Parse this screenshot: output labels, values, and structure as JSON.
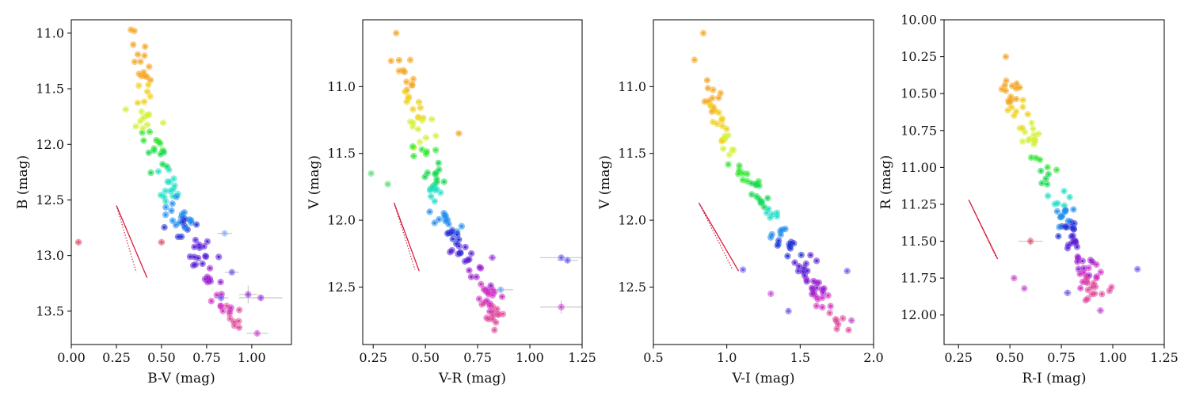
{
  "chart_data": [
    {
      "type": "scatter",
      "panel": "B vs B-V",
      "title": "",
      "xlabel": "B-V (mag)",
      "ylabel": "B (mag)",
      "xlim": [
        0.0,
        1.22
      ],
      "ylim": [
        13.8,
        10.88
      ],
      "y_inverted": true,
      "xticks": [
        0.0,
        0.25,
        0.5,
        0.75,
        1.0
      ],
      "xtick_labels": [
        "0.00",
        "0.25",
        "0.50",
        "0.75",
        "1.00"
      ],
      "yticks": [
        11.0,
        11.5,
        12.0,
        12.5,
        13.0,
        13.5
      ],
      "ytick_labels": [
        "11.0",
        "11.5",
        "12.0",
        "12.5",
        "13.0",
        "13.5"
      ],
      "reddening_vector": {
        "solid": [
          [
            0.25,
            12.55
          ],
          [
            0.42,
            13.2
          ]
        ],
        "dotted": [
          [
            0.25,
            12.55
          ],
          [
            0.36,
            13.15
          ]
        ],
        "color": "#d81b3c"
      },
      "outliers": [
        {
          "x": 0.04,
          "y": 12.88,
          "xerr": 0.02,
          "yerr": 0.02,
          "color": "#e0506e"
        },
        {
          "x": 0.5,
          "y": 12.88,
          "xerr": 0.02,
          "yerr": 0.02,
          "color": "#e0506e"
        },
        {
          "x": 0.33,
          "y": 10.97,
          "xerr": 0.01,
          "yerr": 0.01,
          "color": "#f5a623"
        },
        {
          "x": 0.35,
          "y": 10.98,
          "xerr": 0.01,
          "yerr": 0.01,
          "color": "#f5a623"
        },
        {
          "x": 0.89,
          "y": 13.15,
          "xerr": 0.04,
          "yerr": 0.02,
          "color": "#6b5bf0"
        },
        {
          "x": 0.85,
          "y": 12.8,
          "xerr": 0.04,
          "yerr": 0.02,
          "color": "#8ab4f0"
        },
        {
          "x": 0.98,
          "y": 13.35,
          "xerr": 0.05,
          "yerr": 0.08,
          "color": "#9d3be0"
        },
        {
          "x": 1.03,
          "y": 13.7,
          "xerr": 0.06,
          "yerr": 0.03,
          "color": "#cc4bd6"
        },
        {
          "x": 0.83,
          "y": 13.38,
          "xerr": 0.04,
          "yerr": 0.03,
          "color": "#6b5bf0"
        },
        {
          "x": 1.05,
          "y": 13.38,
          "xerr": 0.12,
          "yerr": 0.03,
          "color": "#9d3be0"
        }
      ],
      "sequence": {
        "points": [
          [
            0.36,
            11.17
          ],
          [
            0.4,
            11.35
          ],
          [
            0.42,
            11.5
          ],
          [
            0.4,
            11.65
          ],
          [
            0.43,
            11.72
          ],
          [
            0.45,
            11.95
          ],
          [
            0.48,
            12.05
          ],
          [
            0.5,
            12.15
          ],
          [
            0.52,
            12.3
          ],
          [
            0.55,
            12.45
          ],
          [
            0.58,
            12.6
          ],
          [
            0.62,
            12.7
          ],
          [
            0.66,
            12.85
          ],
          [
            0.7,
            12.95
          ],
          [
            0.74,
            13.08
          ],
          [
            0.78,
            13.2
          ],
          [
            0.82,
            13.32
          ],
          [
            0.86,
            13.45
          ],
          [
            0.9,
            13.55
          ],
          [
            0.96,
            13.68
          ]
        ],
        "count": 120,
        "spread_x": 0.06,
        "spread_y": 0.06
      }
    },
    {
      "type": "scatter",
      "panel": "V vs V-R",
      "title": "",
      "xlabel": "V-R (mag)",
      "ylabel": "V (mag)",
      "xlim": [
        0.2,
        1.25
      ],
      "ylim": [
        12.93,
        10.5
      ],
      "y_inverted": true,
      "xticks": [
        0.25,
        0.5,
        0.75,
        1.0,
        1.25
      ],
      "xtick_labels": [
        "0.25",
        "0.50",
        "0.75",
        "1.00",
        "1.25"
      ],
      "yticks": [
        11.0,
        11.5,
        12.0,
        12.5
      ],
      "ytick_labels": [
        "11.0",
        "11.5",
        "12.0",
        "12.5"
      ],
      "reddening_vector": {
        "solid": [
          [
            0.35,
            11.87
          ],
          [
            0.47,
            12.38
          ]
        ],
        "dotted": [
          [
            0.35,
            11.87
          ],
          [
            0.45,
            12.37
          ]
        ],
        "color": "#d81b3c"
      },
      "outliers": [
        {
          "x": 0.36,
          "y": 10.6,
          "xerr": 0.01,
          "yerr": 0.01,
          "color": "#f5a623"
        },
        {
          "x": 0.24,
          "y": 11.65,
          "xerr": 0.01,
          "yerr": 0.01,
          "color": "#5fe07a"
        },
        {
          "x": 0.32,
          "y": 11.73,
          "xerr": 0.01,
          "yerr": 0.01,
          "color": "#5fe07a"
        },
        {
          "x": 1.15,
          "y": 12.28,
          "xerr": 0.1,
          "yerr": 0.02,
          "color": "#6b5bf0"
        },
        {
          "x": 1.18,
          "y": 12.3,
          "xerr": 0.05,
          "yerr": 0.02,
          "color": "#6b5bf0"
        },
        {
          "x": 1.15,
          "y": 12.65,
          "xerr": 0.1,
          "yerr": 0.05,
          "color": "#cc4bd6"
        },
        {
          "x": 0.66,
          "y": 11.35,
          "xerr": 0.01,
          "yerr": 0.01,
          "color": "#f5a623"
        },
        {
          "x": 0.82,
          "y": 12.28,
          "xerr": 0.02,
          "yerr": 0.02,
          "color": "#9d3be0"
        },
        {
          "x": 0.86,
          "y": 12.52,
          "xerr": 0.06,
          "yerr": 0.02,
          "color": "#6fa8f0"
        }
      ],
      "sequence": {
        "points": [
          [
            0.38,
            10.8
          ],
          [
            0.4,
            10.95
          ],
          [
            0.43,
            11.1
          ],
          [
            0.46,
            11.25
          ],
          [
            0.48,
            11.4
          ],
          [
            0.5,
            11.5
          ],
          [
            0.52,
            11.6
          ],
          [
            0.53,
            11.7
          ],
          [
            0.55,
            11.8
          ],
          [
            0.57,
            11.9
          ],
          [
            0.6,
            12.0
          ],
          [
            0.63,
            12.1
          ],
          [
            0.66,
            12.2
          ],
          [
            0.7,
            12.3
          ],
          [
            0.74,
            12.4
          ],
          [
            0.78,
            12.5
          ],
          [
            0.8,
            12.6
          ],
          [
            0.82,
            12.7
          ],
          [
            0.84,
            12.8
          ]
        ],
        "count": 120,
        "spread_x": 0.045,
        "spread_y": 0.05
      }
    },
    {
      "type": "scatter",
      "panel": "V vs V-I",
      "title": "",
      "xlabel": "V-I (mag)",
      "ylabel": "V (mag)",
      "xlim": [
        0.5,
        2.0
      ],
      "ylim": [
        12.93,
        10.5
      ],
      "y_inverted": true,
      "xticks": [
        0.5,
        1.0,
        1.5,
        2.0
      ],
      "xtick_labels": [
        "0.5",
        "1.0",
        "1.5",
        "2.0"
      ],
      "yticks": [
        11.0,
        11.5,
        12.0,
        12.5
      ],
      "ytick_labels": [
        "11.0",
        "11.5",
        "12.0",
        "12.5"
      ],
      "reddening_vector": {
        "solid": [
          [
            0.81,
            11.87
          ],
          [
            1.08,
            12.38
          ]
        ],
        "dotted": [
          [
            0.81,
            11.87
          ],
          [
            1.04,
            12.37
          ]
        ],
        "color": "#d81b3c"
      },
      "outliers": [
        {
          "x": 0.84,
          "y": 10.6,
          "xerr": 0.01,
          "yerr": 0.01,
          "color": "#f5a623"
        },
        {
          "x": 0.78,
          "y": 10.8,
          "xerr": 0.01,
          "yerr": 0.01,
          "color": "#f5a623"
        },
        {
          "x": 1.82,
          "y": 12.38,
          "xerr": 0.02,
          "yerr": 0.02,
          "color": "#6b5bf0"
        },
        {
          "x": 1.11,
          "y": 12.37,
          "xerr": 0.01,
          "yerr": 0.01,
          "color": "#6b5bf0"
        },
        {
          "x": 1.42,
          "y": 12.68,
          "xerr": 0.02,
          "yerr": 0.02,
          "color": "#6b5bf0"
        },
        {
          "x": 1.85,
          "y": 12.75,
          "xerr": 0.02,
          "yerr": 0.02,
          "color": "#cc4bd6"
        },
        {
          "x": 1.3,
          "y": 12.55,
          "xerr": 0.01,
          "yerr": 0.01,
          "color": "#cc4bd6"
        }
      ],
      "sequence": {
        "points": [
          [
            0.86,
            10.95
          ],
          [
            0.9,
            11.1
          ],
          [
            0.95,
            11.25
          ],
          [
            1.0,
            11.4
          ],
          [
            1.05,
            11.55
          ],
          [
            1.1,
            11.65
          ],
          [
            1.18,
            11.75
          ],
          [
            1.24,
            11.85
          ],
          [
            1.3,
            11.95
          ],
          [
            1.36,
            12.05
          ],
          [
            1.4,
            12.15
          ],
          [
            1.46,
            12.25
          ],
          [
            1.52,
            12.35
          ],
          [
            1.58,
            12.45
          ],
          [
            1.63,
            12.55
          ],
          [
            1.68,
            12.65
          ],
          [
            1.74,
            12.72
          ],
          [
            1.78,
            12.8
          ]
        ],
        "count": 110,
        "spread_x": 0.06,
        "spread_y": 0.05
      }
    },
    {
      "type": "scatter",
      "panel": "R vs R-I",
      "title": "",
      "xlabel": "R-I (mag)",
      "ylabel": "R (mag)",
      "xlim": [
        0.18,
        1.25
      ],
      "ylim": [
        12.2,
        10.0
      ],
      "y_inverted": true,
      "xticks": [
        0.25,
        0.5,
        0.75,
        1.0,
        1.25
      ],
      "xtick_labels": [
        "0.25",
        "0.50",
        "0.75",
        "1.00",
        "1.25"
      ],
      "yticks": [
        10.0,
        10.25,
        10.5,
        10.75,
        11.0,
        11.25,
        11.5,
        11.75,
        12.0
      ],
      "ytick_labels": [
        "10.00",
        "10.25",
        "10.50",
        "10.75",
        "11.00",
        "11.25",
        "11.50",
        "11.75",
        "12.00"
      ],
      "reddening_vector": {
        "solid": [
          [
            0.3,
            11.22
          ],
          [
            0.44,
            11.62
          ]
        ],
        "dotted": [
          [
            0.3,
            11.22
          ],
          [
            0.43,
            11.6
          ]
        ],
        "color": "#d81b3c"
      },
      "outliers": [
        {
          "x": 0.48,
          "y": 10.25,
          "xerr": 0.01,
          "yerr": 0.01,
          "color": "#f5a623"
        },
        {
          "x": 0.46,
          "y": 10.47,
          "xerr": 0.01,
          "yerr": 0.01,
          "color": "#f5a623"
        },
        {
          "x": 1.12,
          "y": 11.69,
          "xerr": 0.01,
          "yerr": 0.01,
          "color": "#6b5bf0"
        },
        {
          "x": 0.52,
          "y": 11.75,
          "xerr": 0.01,
          "yerr": 0.01,
          "color": "#cc4bd6"
        },
        {
          "x": 0.57,
          "y": 11.82,
          "xerr": 0.01,
          "yerr": 0.01,
          "color": "#cc4bd6"
        },
        {
          "x": 0.6,
          "y": 11.5,
          "xerr": 0.06,
          "yerr": 0.03,
          "color": "#e0506e"
        },
        {
          "x": 0.78,
          "y": 11.85,
          "xerr": 0.02,
          "yerr": 0.02,
          "color": "#6b5bf0"
        },
        {
          "x": 0.94,
          "y": 11.97,
          "xerr": 0.02,
          "yerr": 0.02,
          "color": "#cc4bd6"
        }
      ],
      "sequence": {
        "points": [
          [
            0.5,
            10.4
          ],
          [
            0.52,
            10.55
          ],
          [
            0.56,
            10.65
          ],
          [
            0.6,
            10.78
          ],
          [
            0.64,
            10.9
          ],
          [
            0.68,
            11.0
          ],
          [
            0.7,
            11.1
          ],
          [
            0.73,
            11.2
          ],
          [
            0.75,
            11.3
          ],
          [
            0.77,
            11.38
          ],
          [
            0.8,
            11.45
          ],
          [
            0.83,
            11.55
          ],
          [
            0.86,
            11.65
          ],
          [
            0.88,
            11.72
          ],
          [
            0.9,
            11.8
          ],
          [
            0.93,
            11.88
          ]
        ],
        "count": 110,
        "spread_x": 0.05,
        "spread_y": 0.05
      }
    }
  ]
}
